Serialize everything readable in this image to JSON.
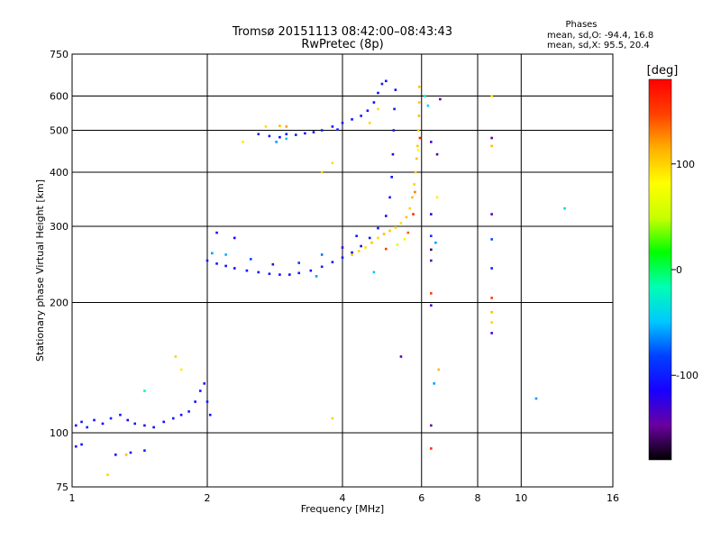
{
  "chart_data": {
    "type": "scatter",
    "title": "Tromsø 20151113 08:42:00–08:43:43",
    "subtitle": "RwPretec (8p)",
    "phase_box": {
      "title": "Phases",
      "line1": "mean, sd,O: -94.4, 16.8",
      "line2": "mean, sd,X:  95.5, 20.4"
    },
    "xlabel": "Frequency [MHz]",
    "ylabel": "Stationary phase Virtual Height [km]",
    "x_scale": "log",
    "y_scale": "log",
    "xlim": [
      1,
      16
    ],
    "ylim": [
      75,
      750
    ],
    "x_ticks": [
      1,
      2,
      4,
      6,
      8,
      10,
      16
    ],
    "y_ticks": [
      75,
      100,
      200,
      300,
      400,
      500,
      600,
      750
    ],
    "grid": true,
    "colorbar": {
      "label": "[deg]",
      "range": [
        -180,
        180
      ],
      "ticks": [
        100,
        0,
        -100
      ],
      "colors": [
        "#000000",
        "#6a00a0",
        "#1800ff",
        "#0040ff",
        "#00c8ff",
        "#00ffb4",
        "#00ff00",
        "#c8ff00",
        "#ffff00",
        "#ffb000",
        "#ff4000",
        "#ff0000"
      ]
    },
    "series": [
      {
        "values": [
          [
            1.02,
            104,
            -110
          ],
          [
            1.05,
            106,
            -105
          ],
          [
            1.08,
            103,
            -100
          ],
          [
            1.12,
            107,
            -108
          ],
          [
            1.17,
            105,
            -112
          ],
          [
            1.22,
            108,
            -100
          ],
          [
            1.28,
            110,
            -104
          ],
          [
            1.33,
            107,
            -110
          ],
          [
            1.38,
            105,
            -100
          ],
          [
            1.45,
            104,
            -108
          ],
          [
            1.52,
            103,
            -112
          ],
          [
            1.6,
            106,
            -106
          ],
          [
            1.68,
            108,
            -102
          ],
          [
            1.75,
            110,
            -110
          ],
          [
            1.82,
            112,
            -100
          ],
          [
            1.88,
            118,
            -108
          ],
          [
            1.93,
            125,
            -104
          ],
          [
            1.97,
            130,
            -112
          ],
          [
            2.0,
            118,
            -100
          ],
          [
            2.03,
            110,
            -106
          ],
          [
            1.02,
            93,
            -115
          ],
          [
            1.05,
            94,
            -108
          ],
          [
            1.25,
            89,
            -112
          ],
          [
            1.35,
            90,
            -110
          ],
          [
            1.45,
            91,
            -100
          ],
          [
            2.0,
            250,
            -100
          ],
          [
            2.1,
            246,
            -104
          ],
          [
            2.2,
            243,
            -108
          ],
          [
            2.3,
            240,
            -112
          ],
          [
            2.45,
            237,
            -110
          ],
          [
            2.6,
            235,
            -106
          ],
          [
            2.75,
            233,
            -104
          ],
          [
            2.9,
            232,
            -108
          ],
          [
            3.05,
            232,
            -112
          ],
          [
            3.2,
            234,
            -100
          ],
          [
            3.4,
            237,
            -104
          ],
          [
            3.6,
            242,
            -98
          ],
          [
            3.8,
            248,
            -108
          ],
          [
            4.0,
            254,
            -102
          ],
          [
            4.2,
            261,
            -106
          ],
          [
            4.4,
            270,
            -110
          ],
          [
            4.6,
            282,
            -104
          ],
          [
            4.8,
            297,
            -100
          ],
          [
            5.0,
            317,
            -108
          ],
          [
            5.1,
            350,
            -104
          ],
          [
            5.15,
            390,
            -108
          ],
          [
            5.18,
            440,
            -110
          ],
          [
            5.2,
            500,
            -104
          ],
          [
            5.22,
            560,
            -100
          ],
          [
            5.25,
            620,
            -110
          ],
          [
            2.05,
            260,
            -60
          ],
          [
            2.2,
            258,
            -55
          ],
          [
            2.5,
            252,
            -80
          ],
          [
            2.8,
            245,
            -130
          ],
          [
            3.2,
            247,
            -85
          ],
          [
            3.6,
            258,
            -70
          ],
          [
            4.0,
            268,
            -130
          ],
          [
            4.3,
            285,
            -100
          ],
          [
            2.1,
            290,
            -108
          ],
          [
            2.3,
            282,
            -112
          ],
          [
            2.6,
            490,
            -100
          ],
          [
            2.75,
            485,
            -108
          ],
          [
            2.9,
            482,
            -112
          ],
          [
            3.0,
            490,
            -104
          ],
          [
            3.15,
            488,
            -100
          ],
          [
            3.3,
            492,
            -108
          ],
          [
            3.45,
            495,
            -110
          ],
          [
            3.6,
            500,
            -102
          ],
          [
            3.8,
            510,
            -108
          ],
          [
            3.9,
            502,
            -104
          ],
          [
            4.0,
            520,
            -100
          ],
          [
            4.2,
            530,
            -108
          ],
          [
            4.4,
            540,
            -104
          ],
          [
            4.55,
            555,
            -110
          ],
          [
            4.7,
            580,
            -112
          ],
          [
            4.8,
            610,
            -108
          ],
          [
            4.9,
            640,
            -104
          ],
          [
            5.0,
            650,
            -108
          ],
          [
            2.85,
            470,
            -60
          ],
          [
            3.0,
            478,
            -50
          ]
        ]
      },
      {
        "values": [
          [
            4.2,
            258,
            110
          ],
          [
            4.35,
            263,
            100
          ],
          [
            4.5,
            268,
            95
          ],
          [
            4.65,
            275,
            108
          ],
          [
            4.8,
            282,
            100
          ],
          [
            4.95,
            288,
            110
          ],
          [
            5.1,
            293,
            105
          ],
          [
            5.25,
            298,
            100
          ],
          [
            5.4,
            305,
            95
          ],
          [
            5.55,
            315,
            108
          ],
          [
            5.65,
            330,
            100
          ],
          [
            5.72,
            350,
            110
          ],
          [
            5.78,
            375,
            102
          ],
          [
            5.82,
            400,
            100
          ],
          [
            5.85,
            430,
            108
          ],
          [
            5.88,
            460,
            104
          ],
          [
            5.9,
            500,
            100
          ],
          [
            5.92,
            540,
            110
          ],
          [
            5.93,
            580,
            105
          ],
          [
            5.93,
            630,
            108
          ],
          [
            5.5,
            280,
            70
          ],
          [
            5.3,
            272,
            60
          ],
          [
            5.0,
            266,
            150
          ],
          [
            5.6,
            290,
            140
          ],
          [
            5.75,
            320,
            160
          ],
          [
            5.8,
            360,
            130
          ],
          [
            5.9,
            450,
            80
          ],
          [
            5.95,
            480,
            160
          ],
          [
            4.6,
            520,
            100
          ],
          [
            4.8,
            560,
            95
          ],
          [
            2.7,
            510,
            95
          ],
          [
            2.9,
            512,
            110
          ],
          [
            3.6,
            400,
            100
          ],
          [
            3.8,
            420,
            95
          ],
          [
            1.32,
            89,
            110
          ],
          [
            1.2,
            80,
            100
          ],
          [
            1.75,
            140,
            90
          ],
          [
            1.7,
            150,
            100
          ],
          [
            2.4,
            470,
            90
          ],
          [
            3.0,
            510,
            120
          ]
        ]
      },
      {
        "values": [
          [
            6.3,
            470,
            -130
          ],
          [
            6.3,
            320,
            -120
          ],
          [
            6.3,
            285,
            -90
          ],
          [
            6.3,
            265,
            -160
          ],
          [
            6.3,
            250,
            -140
          ],
          [
            6.3,
            210,
            150
          ],
          [
            6.3,
            197,
            -130
          ],
          [
            6.4,
            130,
            -60
          ],
          [
            6.3,
            104,
            -150
          ],
          [
            6.3,
            92,
            160
          ],
          [
            6.5,
            440,
            -150
          ],
          [
            6.45,
            275,
            -60
          ],
          [
            6.6,
            590,
            -140
          ],
          [
            6.55,
            140,
            110
          ],
          [
            6.5,
            350,
            90
          ],
          [
            8.6,
            480,
            -150
          ],
          [
            8.6,
            320,
            -140
          ],
          [
            8.6,
            280,
            -80
          ],
          [
            8.6,
            240,
            -100
          ],
          [
            8.6,
            205,
            150
          ],
          [
            8.6,
            190,
            110
          ],
          [
            8.6,
            180,
            100
          ],
          [
            8.6,
            170,
            -130
          ],
          [
            8.6,
            600,
            90
          ],
          [
            8.6,
            460,
            110
          ],
          [
            10.8,
            120,
            -60
          ],
          [
            12.5,
            330,
            -40
          ],
          [
            4.7,
            235,
            -50
          ],
          [
            3.5,
            230,
            -60
          ],
          [
            5.4,
            150,
            -140
          ],
          [
            6.2,
            570,
            -40
          ],
          [
            6.1,
            600,
            -20
          ],
          [
            3.8,
            108,
            100
          ],
          [
            1.45,
            125,
            -20
          ]
        ]
      }
    ]
  }
}
